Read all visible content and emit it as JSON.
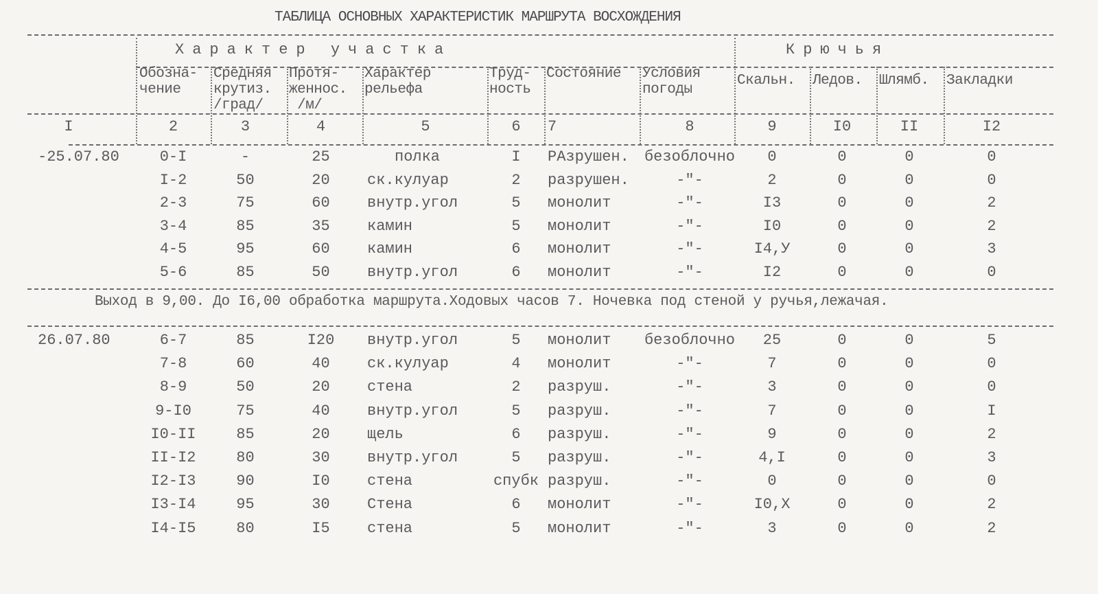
{
  "title": "ТАБЛИЦА ОСНОВНЫХ ХАРАКТЕРИСТИК МАРШРУТА ВОСХОЖДЕНИЯ",
  "header": {
    "section_left": "Характер участка",
    "section_right": "Крючья",
    "columns": [
      "",
      "Обозна-\nчение",
      "Средняя\nкрутиз.\n/град/",
      "Протя-\nженнос.\n /м/",
      "Характер\nрельефа",
      "Труд-\nность",
      "Состояние",
      "Условия\nпогоды",
      "Скальн.",
      "Ледов.",
      "Шлямб.",
      "Закладки"
    ],
    "numbers": [
      "I",
      "2",
      "3",
      "4",
      "5",
      "6",
      "7",
      "8",
      "9",
      "I0",
      "II",
      "I2"
    ]
  },
  "day1": {
    "rows": [
      [
        "-25.07.80",
        "0-I",
        "-",
        "25",
        "полка",
        "I",
        "РАзрушен.",
        "безоблочно",
        "0",
        "0",
        "0",
        "0"
      ],
      [
        "",
        "I-2",
        "50",
        "20",
        "ск.кулуар",
        "2",
        "разрушен.",
        "-\"-",
        "2",
        "0",
        "0",
        "0"
      ],
      [
        "",
        "2-3",
        "75",
        "60",
        "внутр.угол",
        "5",
        "монолит",
        "-\"-",
        "I3",
        "0",
        "0",
        "2"
      ],
      [
        "",
        "3-4",
        "85",
        "35",
        "камин",
        "5",
        "монолит",
        "-\"-",
        "I0",
        "0",
        "0",
        "2"
      ],
      [
        "",
        "4-5",
        "95",
        "60",
        "камин",
        "6",
        "монолит",
        "-\"-",
        "I4,У",
        "0",
        "0",
        "3"
      ],
      [
        "",
        "5-6",
        "85",
        "50",
        "внутр.угол",
        "6",
        "монолит",
        "-\"-",
        "I2",
        "0",
        "0",
        "0"
      ]
    ]
  },
  "note": "Выход в 9,00. До I6,00 обработка маршрута.Ходовых часов 7. Ночевка под стеной у ручья,лежачая.",
  "day2": {
    "rows": [
      [
        "26.07.80",
        "6-7",
        "85",
        "I20",
        "внутр.угол",
        "5",
        "монолит",
        "безоблочно",
        "25",
        "0",
        "0",
        "5"
      ],
      [
        "",
        "7-8",
        "60",
        "40",
        "ск.кулуар",
        "4",
        "монолит",
        "-\"-",
        "7",
        "0",
        "0",
        "0"
      ],
      [
        "",
        "8-9",
        "50",
        "20",
        "стена",
        "2",
        "разруш.",
        "-\"-",
        "3",
        "0",
        "0",
        "0"
      ],
      [
        "",
        "9-I0",
        "75",
        "40",
        "внутр.угол",
        "5",
        "разруш.",
        "-\"-",
        "7",
        "0",
        "0",
        "I"
      ],
      [
        "",
        "I0-II",
        "85",
        "20",
        "щель",
        "6",
        "разруш.",
        "-\"-",
        "9",
        "0",
        "0",
        "2"
      ],
      [
        "",
        "II-I2",
        "80",
        "30",
        "внутр.угол",
        "5",
        "разруш.",
        "-\"-",
        "4,I",
        "0",
        "0",
        "3"
      ],
      [
        "",
        "I2-I3",
        "90",
        "I0",
        "стена",
        "спубк",
        "разруш.",
        "-\"-",
        "0",
        "0",
        "0",
        "0"
      ],
      [
        "",
        "I3-I4",
        "95",
        "30",
        "Стена",
        "6",
        "монолит",
        "-\"-",
        "I0,X",
        "0",
        "0",
        "2"
      ],
      [
        "",
        "I4-I5",
        "80",
        "I5",
        "стена",
        "5",
        "монолит",
        "-\"-",
        "3",
        "0",
        "0",
        "2"
      ]
    ]
  }
}
